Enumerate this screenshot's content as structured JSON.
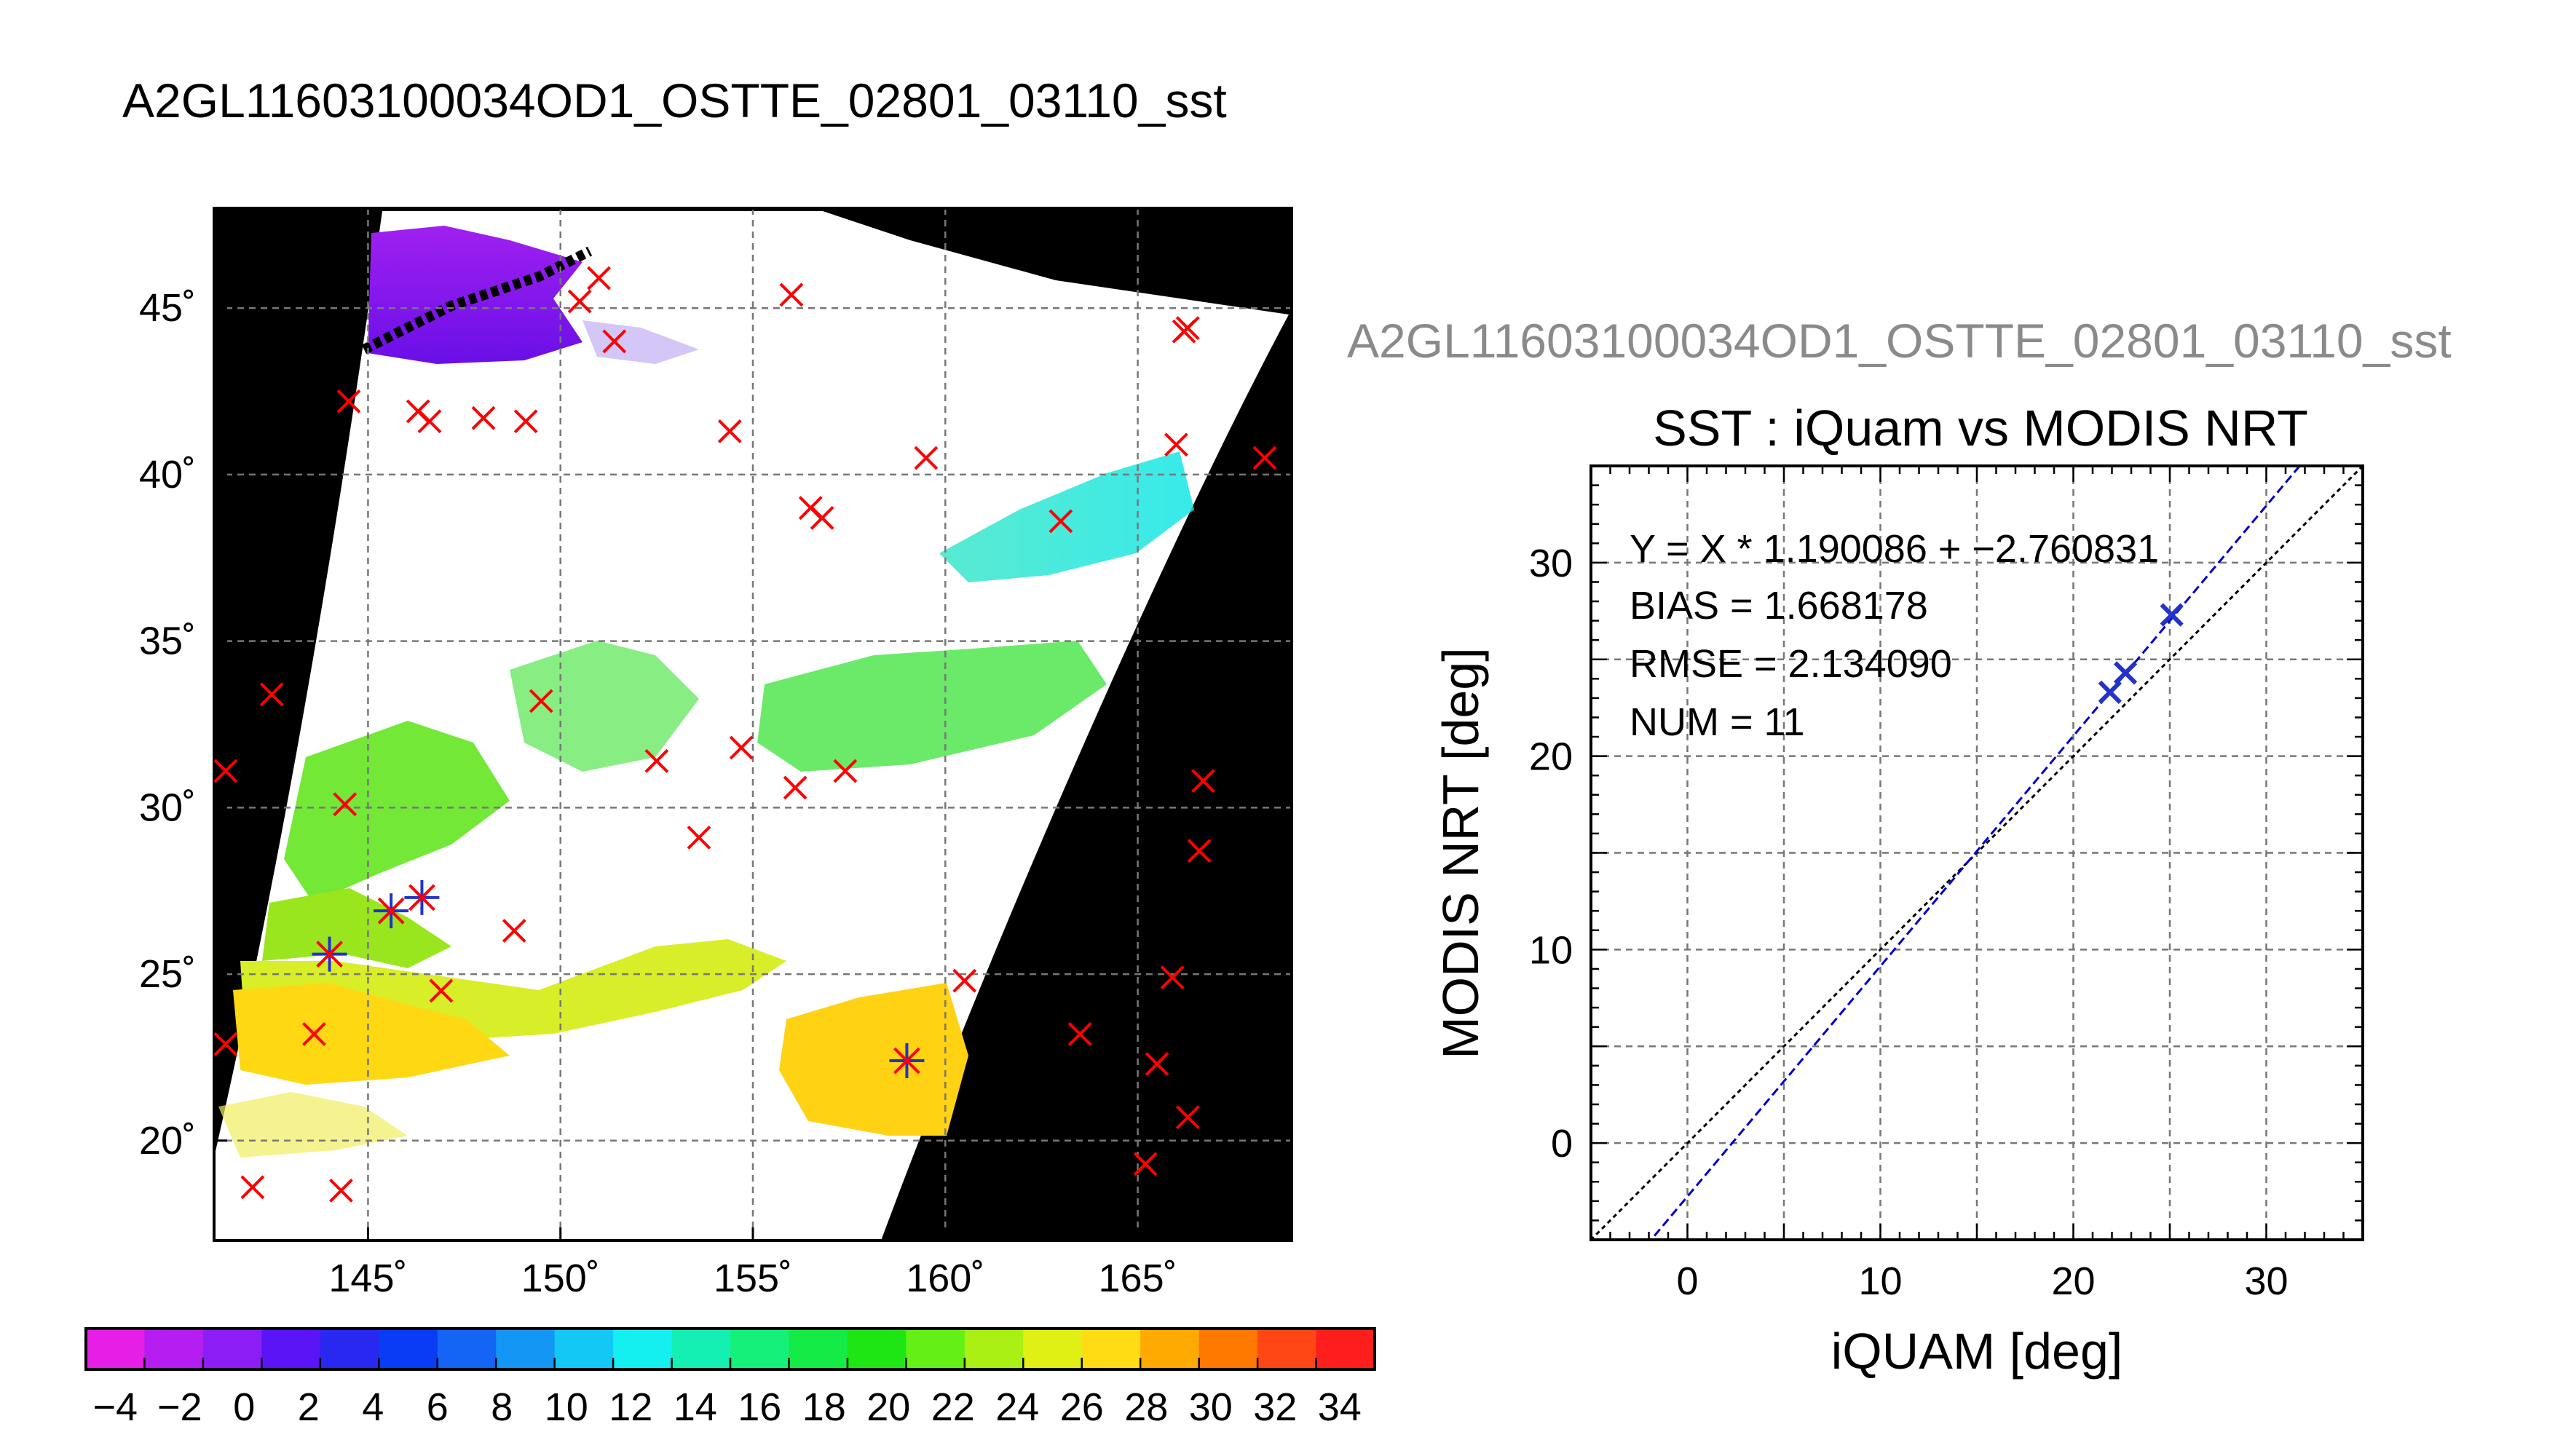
{
  "title": "A2GL11603100034OD1_OSTTE_02801_03110_sst",
  "colors": {
    "land": "#000000",
    "matchup_marker": "#ff0000",
    "highlight_marker": "#2233cc",
    "fit_line": "#0000cc",
    "identity_line": "#000000",
    "grid": "#777777"
  },
  "chart_data": [
    {
      "type": "scatter",
      "name": "map",
      "title": "A2GL11603100034OD1_OSTTE_02801_03110_sst",
      "xlim": [
        141,
        169
      ],
      "ylim": [
        17,
        48
      ],
      "x_ticks": [
        145,
        150,
        155,
        160,
        165
      ],
      "y_ticks": [
        20,
        25,
        30,
        35,
        40,
        45
      ],
      "tick_suffix": "˚",
      "grid": true,
      "red_crosses": [
        [
          150.5,
          45.2
        ],
        [
          151.0,
          45.9
        ],
        [
          151.4,
          44.0
        ],
        [
          156.0,
          45.4
        ],
        [
          166.2,
          44.3
        ],
        [
          166.3,
          44.4
        ],
        [
          144.5,
          42.2
        ],
        [
          146.3,
          41.9
        ],
        [
          146.6,
          41.6
        ],
        [
          148.0,
          41.7
        ],
        [
          149.1,
          41.6
        ],
        [
          154.4,
          41.3
        ],
        [
          159.5,
          40.5
        ],
        [
          166.0,
          40.9
        ],
        [
          168.3,
          40.5
        ],
        [
          156.5,
          39.0
        ],
        [
          156.8,
          38.7
        ],
        [
          163.0,
          38.6
        ],
        [
          142.5,
          33.4
        ],
        [
          149.5,
          33.2
        ],
        [
          141.3,
          31.1
        ],
        [
          152.5,
          31.4
        ],
        [
          154.7,
          31.8
        ],
        [
          156.1,
          30.6
        ],
        [
          157.4,
          31.1
        ],
        [
          166.7,
          30.8
        ],
        [
          144.4,
          30.1
        ],
        [
          153.6,
          29.1
        ],
        [
          166.6,
          28.7
        ],
        [
          148.8,
          26.3
        ],
        [
          146.9,
          24.5
        ],
        [
          160.5,
          24.8
        ],
        [
          165.9,
          24.9
        ],
        [
          143.6,
          23.2
        ],
        [
          141.3,
          22.9
        ],
        [
          163.5,
          23.2
        ],
        [
          165.5,
          22.3
        ],
        [
          166.3,
          20.7
        ],
        [
          165.2,
          19.3
        ],
        [
          142.0,
          18.6
        ],
        [
          144.3,
          18.5
        ]
      ],
      "blue_stars": [
        [
          145.6,
          26.9
        ],
        [
          146.4,
          27.3
        ],
        [
          144.0,
          25.6
        ],
        [
          159.0,
          22.4
        ]
      ]
    },
    {
      "type": "scatter",
      "title": "SST : iQuam vs MODIS NRT",
      "xlabel": "iQUAM [deg]",
      "ylabel": "MODIS NRT [deg]",
      "xlim": [
        -5,
        35
      ],
      "ylim": [
        -5,
        35
      ],
      "x_ticks": [
        0,
        10,
        20,
        30
      ],
      "y_ticks": [
        0,
        10,
        20,
        30
      ],
      "grid": true,
      "points": [
        [
          21.9,
          23.3
        ],
        [
          22.7,
          24.3
        ],
        [
          25.1,
          27.3
        ]
      ],
      "fit": {
        "slope": 1.190086,
        "intercept": -2.760831
      },
      "annotations": [
        "Y = X * 1.190086 + −2.760831",
        "BIAS = 1.668178",
        "RMSE = 2.134090",
        "NUM = 11"
      ]
    },
    {
      "type": "heatmap",
      "name": "colorbar",
      "range": [
        -5,
        35
      ],
      "tick_values": [
        -4,
        -2,
        0,
        2,
        4,
        6,
        8,
        10,
        12,
        14,
        16,
        18,
        20,
        22,
        24,
        26,
        28,
        30,
        32,
        34
      ],
      "tick_labels": [
        "−4",
        "−2",
        "0",
        "2",
        "4",
        "6",
        "8",
        "10",
        "12",
        "14",
        "16",
        "18",
        "20",
        "22",
        "24",
        "26",
        "28",
        "30",
        "32",
        "34"
      ],
      "colors": [
        "#e61ee6",
        "#b41ef0",
        "#8c1ef5",
        "#5a14f5",
        "#2828f0",
        "#0a3cf5",
        "#1464f5",
        "#1496f5",
        "#14c8f5",
        "#14f0f0",
        "#14f0b4",
        "#14f078",
        "#14eb46",
        "#1ee614",
        "#64f014",
        "#aaf014",
        "#e1f014",
        "#ffdc14",
        "#ffaa00",
        "#ff7800",
        "#ff4614",
        "#ff1e1e"
      ]
    }
  ]
}
